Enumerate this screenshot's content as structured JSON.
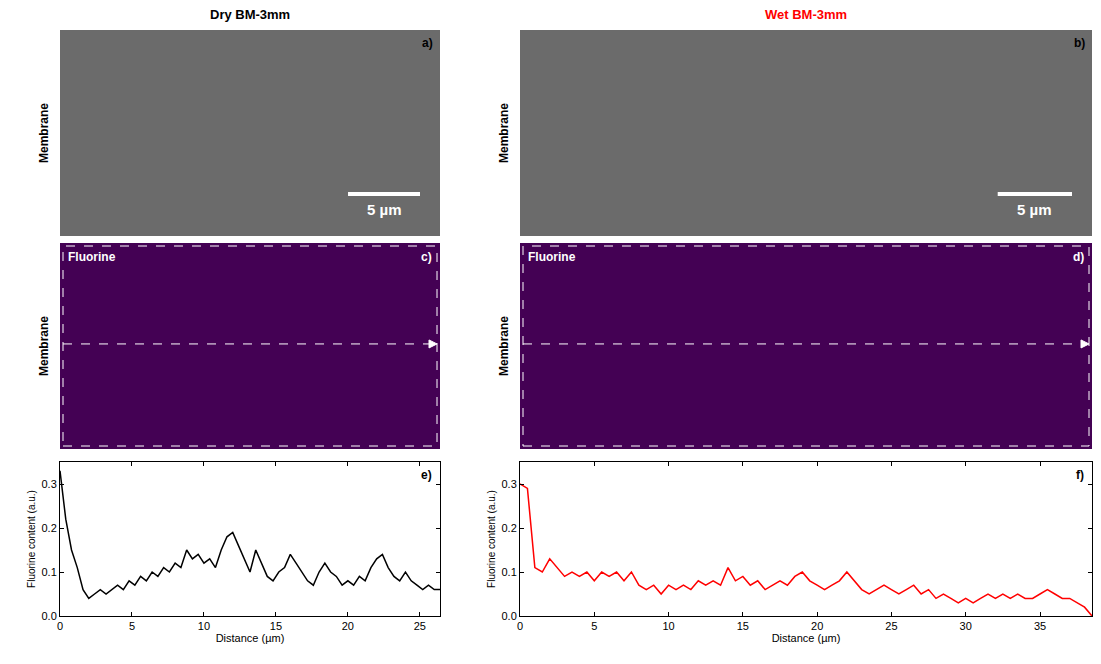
{
  "figure": {
    "columns": [
      {
        "title": "Dry BM-3mm",
        "color": "#000000",
        "image_label": "Membrane",
        "sem": {
          "letter": "a)",
          "scale_bar": {
            "value": 5,
            "label": "5 µm"
          }
        },
        "map": {
          "letter": "c)",
          "element": "Fluorine"
        }
      },
      {
        "title": "Wet BM-3mm",
        "color": "#ff0000",
        "image_label": "Membrane",
        "sem": {
          "letter": "b)",
          "scale_bar": {
            "value": 5,
            "label": "5 µm"
          }
        },
        "map": {
          "letter": "d)",
          "element": "Fluorine"
        }
      }
    ]
  },
  "chart_data": [
    {
      "type": "line",
      "letter": "e)",
      "color": "#000000",
      "x_label": "Distance (µm)",
      "y_label": "Fluorine content (a.u.)",
      "x": [
        0,
        0.4,
        0.8,
        1.2,
        1.6,
        2.0,
        2.4,
        2.8,
        3.2,
        3.6,
        4.0,
        4.4,
        4.8,
        5.2,
        5.6,
        6.0,
        6.4,
        6.8,
        7.2,
        7.6,
        8.0,
        8.4,
        8.8,
        9.2,
        9.6,
        10.0,
        10.4,
        10.8,
        11.2,
        11.6,
        12.0,
        12.4,
        12.8,
        13.2,
        13.6,
        14.0,
        14.4,
        14.8,
        15.2,
        15.6,
        16.0,
        16.4,
        16.8,
        17.2,
        17.6,
        18.0,
        18.4,
        18.8,
        19.2,
        19.6,
        20.0,
        20.4,
        20.8,
        21.2,
        21.6,
        22.0,
        22.4,
        22.8,
        23.2,
        23.6,
        24.0,
        24.4,
        24.8,
        25.2,
        25.6,
        26.0,
        26.4
      ],
      "values": [
        0.33,
        0.22,
        0.15,
        0.11,
        0.06,
        0.04,
        0.05,
        0.06,
        0.05,
        0.06,
        0.07,
        0.06,
        0.08,
        0.07,
        0.09,
        0.08,
        0.1,
        0.09,
        0.11,
        0.1,
        0.12,
        0.11,
        0.15,
        0.13,
        0.14,
        0.12,
        0.13,
        0.11,
        0.15,
        0.18,
        0.19,
        0.16,
        0.13,
        0.1,
        0.15,
        0.12,
        0.09,
        0.08,
        0.1,
        0.11,
        0.14,
        0.12,
        0.1,
        0.08,
        0.07,
        0.1,
        0.12,
        0.1,
        0.09,
        0.07,
        0.08,
        0.07,
        0.09,
        0.08,
        0.11,
        0.13,
        0.14,
        0.11,
        0.09,
        0.08,
        0.1,
        0.08,
        0.07,
        0.06,
        0.07,
        0.06,
        0.06
      ],
      "xlim": [
        0,
        26.4
      ],
      "xticks": [
        0,
        5,
        10,
        15,
        20,
        25
      ],
      "ylim": [
        0,
        0.35
      ],
      "yticks": [
        {
          "value": 0,
          "label": "0.0"
        },
        0.1,
        0.2,
        0.3
      ]
    },
    {
      "type": "line",
      "letter": "f)",
      "color": "#ff0000",
      "x_label": "Distance (µm)",
      "y_label": "Fluorine content (a.u.)",
      "x": [
        0,
        0.5,
        1.0,
        1.5,
        2.0,
        2.5,
        3.0,
        3.5,
        4.0,
        4.5,
        5.0,
        5.5,
        6.0,
        6.5,
        7.0,
        7.5,
        8.0,
        8.5,
        9.0,
        9.5,
        10.0,
        10.5,
        11.0,
        11.5,
        12.0,
        12.5,
        13.0,
        13.5,
        14.0,
        14.5,
        15.0,
        15.5,
        16.0,
        16.5,
        17.0,
        17.5,
        18.0,
        18.5,
        19.0,
        19.5,
        20.0,
        20.5,
        21.0,
        21.5,
        22.0,
        22.5,
        23.0,
        23.5,
        24.0,
        24.5,
        25.0,
        25.5,
        26.0,
        26.5,
        27.0,
        27.5,
        28.0,
        28.5,
        29.0,
        29.5,
        30.0,
        30.5,
        31.0,
        31.5,
        32.0,
        32.5,
        33.0,
        33.5,
        34.0,
        34.5,
        35.0,
        35.5,
        36.0,
        36.5,
        37.0,
        37.5,
        38.0,
        38.5
      ],
      "values": [
        0.3,
        0.29,
        0.11,
        0.1,
        0.13,
        0.11,
        0.09,
        0.1,
        0.09,
        0.1,
        0.08,
        0.1,
        0.09,
        0.1,
        0.08,
        0.1,
        0.07,
        0.06,
        0.07,
        0.05,
        0.07,
        0.06,
        0.07,
        0.06,
        0.08,
        0.07,
        0.08,
        0.07,
        0.11,
        0.08,
        0.09,
        0.07,
        0.08,
        0.06,
        0.07,
        0.08,
        0.07,
        0.09,
        0.1,
        0.08,
        0.07,
        0.06,
        0.07,
        0.08,
        0.1,
        0.08,
        0.06,
        0.05,
        0.06,
        0.07,
        0.06,
        0.05,
        0.06,
        0.07,
        0.05,
        0.06,
        0.04,
        0.05,
        0.04,
        0.03,
        0.04,
        0.03,
        0.04,
        0.05,
        0.04,
        0.05,
        0.04,
        0.05,
        0.04,
        0.04,
        0.05,
        0.06,
        0.05,
        0.04,
        0.04,
        0.03,
        0.02,
        0.0
      ],
      "xlim": [
        0,
        38.5
      ],
      "xticks": [
        0,
        5,
        10,
        15,
        20,
        25,
        30,
        35
      ],
      "ylim": [
        0,
        0.35
      ],
      "yticks": [
        {
          "value": 0,
          "label": "0.0"
        },
        0.1,
        0.2,
        0.3
      ]
    }
  ]
}
